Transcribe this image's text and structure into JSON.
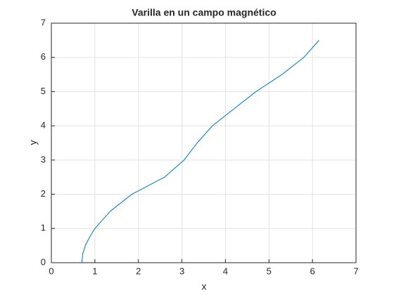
{
  "chart_data": {
    "type": "line",
    "title": "Varilla en un campo magnético",
    "xlabel": "x",
    "ylabel": "y",
    "x": [
      0.7,
      0.72,
      0.78,
      0.88,
      1.0,
      1.35,
      1.85,
      2.6,
      3.05,
      3.35,
      3.7,
      4.2,
      4.7,
      5.3,
      5.8,
      6.15
    ],
    "series": [
      {
        "color": "#0072bd",
        "values": [
          0,
          0.25,
          0.5,
          0.75,
          1.0,
          1.5,
          2.0,
          2.5,
          3.0,
          3.5,
          4.0,
          4.5,
          5.0,
          5.5,
          6.0,
          6.5
        ]
      }
    ],
    "xlim": [
      0,
      7
    ],
    "ylim": [
      0,
      7
    ],
    "xticks": [
      0,
      1,
      2,
      3,
      4,
      5,
      6,
      7
    ],
    "yticks": [
      0,
      1,
      2,
      3,
      4,
      5,
      6,
      7
    ],
    "grid": true
  }
}
